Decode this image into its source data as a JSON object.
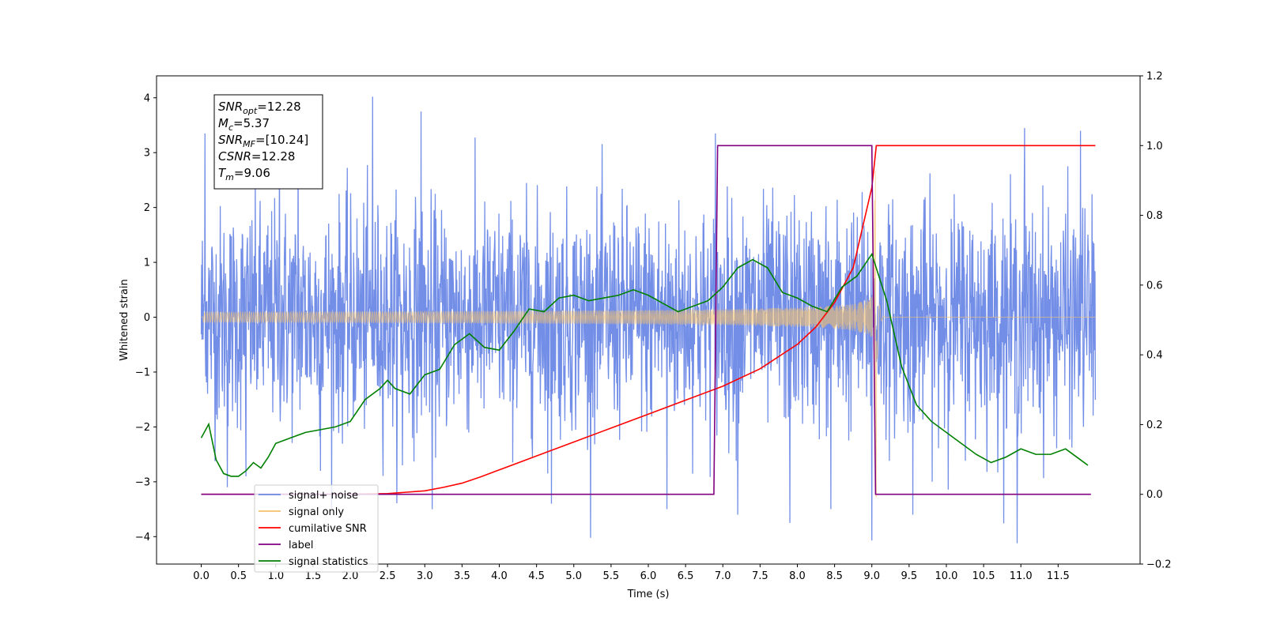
{
  "chart_data": {
    "type": "line",
    "title": "",
    "xlabel": "Time (s)",
    "ylabel": "Whitened strain",
    "xlim": [
      -0.6,
      12.6
    ],
    "ylim": [
      -4.5,
      4.4
    ],
    "y2lim": [
      -0.2,
      1.2
    ],
    "x_ticks": [
      "0.0",
      "0.5",
      "1.0",
      "1.5",
      "2.0",
      "2.5",
      "3.0",
      "3.5",
      "4.0",
      "4.5",
      "5.0",
      "5.5",
      "6.0",
      "6.5",
      "7.0",
      "7.5",
      "8.0",
      "8.5",
      "9.0",
      "9.5",
      "10.0",
      "10.5",
      "11.0",
      "11.5"
    ],
    "x_tick_values": [
      0.0,
      0.5,
      1.0,
      1.5,
      2.0,
      2.5,
      3.0,
      3.5,
      4.0,
      4.5,
      5.0,
      5.5,
      6.0,
      6.5,
      7.0,
      7.5,
      8.0,
      8.5,
      9.0,
      9.5,
      10.0,
      10.5,
      11.0,
      11.5
    ],
    "y_ticks": [
      "−4",
      "−3",
      "−2",
      "−1",
      "0",
      "1",
      "2",
      "3",
      "4"
    ],
    "y_tick_values": [
      -4,
      -3,
      -2,
      -1,
      0,
      1,
      2,
      3,
      4
    ],
    "y2_ticks": [
      "−0.2",
      "0.0",
      "0.2",
      "0.4",
      "0.6",
      "0.8",
      "1.0",
      "1.2"
    ],
    "y2_tick_values": [
      -0.2,
      0.0,
      0.2,
      0.4,
      0.6,
      0.8,
      1.0,
      1.2
    ],
    "grid": false,
    "legend_position": "bottom-left",
    "annotation": {
      "lines": [
        {
          "main": "SNR",
          "sub": "opt",
          "rest": "=12.28"
        },
        {
          "main": "M",
          "sub": "c",
          "rest": "=5.37"
        },
        {
          "main": "SNR",
          "sub": "MF",
          "rest": "=[10.24]"
        },
        {
          "main": "CSNR",
          "sub": "",
          "rest": "=12.28"
        },
        {
          "main": "T",
          "sub": "m",
          "rest": "=9.06"
        }
      ]
    },
    "legend": [
      {
        "name": "signal+ noise",
        "color": "#6b88e6"
      },
      {
        "name": "signal only",
        "color": "#f5c16c"
      },
      {
        "name": "cumilative SNR",
        "color": "#ff0000"
      },
      {
        "name": "label",
        "color": "#800080"
      },
      {
        "name": "signal statistics",
        "color": "#008000"
      }
    ],
    "series": [
      {
        "name": "signal+ noise",
        "axis": "left",
        "style": "noise",
        "color": "#6b88e6",
        "x_range": [
          0.0,
          12.0
        ],
        "amplitude": 1.0,
        "peaks": [
          {
            "x": 0.05,
            "y": 3.35
          },
          {
            "x": 0.35,
            "y": -3.1
          },
          {
            "x": 0.6,
            "y": -2.9
          },
          {
            "x": 1.05,
            "y": 3.3
          },
          {
            "x": 1.3,
            "y": 3.2
          },
          {
            "x": 1.6,
            "y": -2.8
          },
          {
            "x": 2.3,
            "y": 4.02
          },
          {
            "x": 2.7,
            "y": -2.7
          },
          {
            "x": 2.95,
            "y": 3.75
          },
          {
            "x": 3.1,
            "y": -3.5
          },
          {
            "x": 4.7,
            "y": -3.4
          },
          {
            "x": 6.25,
            "y": -3.5
          },
          {
            "x": 6.9,
            "y": 3.35
          },
          {
            "x": 7.2,
            "y": -3.6
          },
          {
            "x": 7.9,
            "y": -3.75
          },
          {
            "x": 8.45,
            "y": -3.5
          },
          {
            "x": 9.0,
            "y": -4.07
          },
          {
            "x": 9.55,
            "y": -3.6
          },
          {
            "x": 10.95,
            "y": -4.12
          },
          {
            "x": 11.05,
            "y": 3.45
          },
          {
            "x": 11.8,
            "y": 3.4
          }
        ]
      },
      {
        "name": "signal only",
        "axis": "left",
        "style": "chirp",
        "color": "#f5c16c",
        "start": 0.0,
        "merger": 9.06,
        "end": 12.0
      },
      {
        "name": "cumilative SNR",
        "axis": "right",
        "color": "#ff0000",
        "x": [
          0.0,
          2.0,
          2.5,
          3.0,
          3.25,
          3.5,
          3.75,
          4.0,
          4.5,
          5.0,
          5.5,
          6.0,
          6.5,
          7.0,
          7.5,
          8.0,
          8.25,
          8.5,
          8.75,
          9.0,
          9.06,
          12.0
        ],
        "y": [
          0.0,
          0.0,
          0.002,
          0.01,
          0.02,
          0.032,
          0.05,
          0.07,
          0.11,
          0.15,
          0.19,
          0.23,
          0.27,
          0.31,
          0.36,
          0.43,
          0.48,
          0.55,
          0.65,
          0.88,
          1.0,
          1.0
        ]
      },
      {
        "name": "label",
        "axis": "right",
        "color": "#800080",
        "x": [
          0.0,
          6.88,
          6.93,
          9.0,
          9.05,
          11.94
        ],
        "y": [
          0.0,
          0.0,
          1.0,
          1.0,
          0.0,
          0.0
        ]
      },
      {
        "name": "signal statistics",
        "axis": "left",
        "color": "#008000",
        "x": [
          0.0,
          0.1,
          0.2,
          0.3,
          0.4,
          0.5,
          0.6,
          0.7,
          0.8,
          0.9,
          1.0,
          1.2,
          1.4,
          1.6,
          1.8,
          2.0,
          2.2,
          2.4,
          2.5,
          2.6,
          2.8,
          3.0,
          3.2,
          3.4,
          3.6,
          3.8,
          4.0,
          4.2,
          4.4,
          4.6,
          4.8,
          5.0,
          5.2,
          5.4,
          5.6,
          5.8,
          6.0,
          6.2,
          6.4,
          6.6,
          6.8,
          7.0,
          7.2,
          7.4,
          7.6,
          7.8,
          8.0,
          8.2,
          8.4,
          8.6,
          8.8,
          9.0,
          9.2,
          9.4,
          9.6,
          9.8,
          10.0,
          10.2,
          10.4,
          10.6,
          10.8,
          11.0,
          11.2,
          11.4,
          11.6,
          11.8,
          11.9
        ],
        "y": [
          -2.2,
          -1.95,
          -2.6,
          -2.85,
          -2.9,
          -2.9,
          -2.8,
          -2.65,
          -2.75,
          -2.55,
          -2.3,
          -2.2,
          -2.1,
          -2.05,
          -2.0,
          -1.9,
          -1.5,
          -1.3,
          -1.15,
          -1.3,
          -1.4,
          -1.05,
          -0.95,
          -0.5,
          -0.3,
          -0.55,
          -0.6,
          -0.25,
          0.15,
          0.1,
          0.35,
          0.4,
          0.3,
          0.35,
          0.4,
          0.5,
          0.4,
          0.25,
          0.1,
          0.2,
          0.3,
          0.55,
          0.9,
          1.05,
          0.9,
          0.45,
          0.35,
          0.2,
          0.1,
          0.55,
          0.75,
          1.15,
          0.3,
          -0.9,
          -1.6,
          -1.9,
          -2.1,
          -2.3,
          -2.5,
          -2.65,
          -2.55,
          -2.4,
          -2.5,
          -2.5,
          -2.4,
          -2.6,
          -2.7
        ]
      }
    ]
  }
}
